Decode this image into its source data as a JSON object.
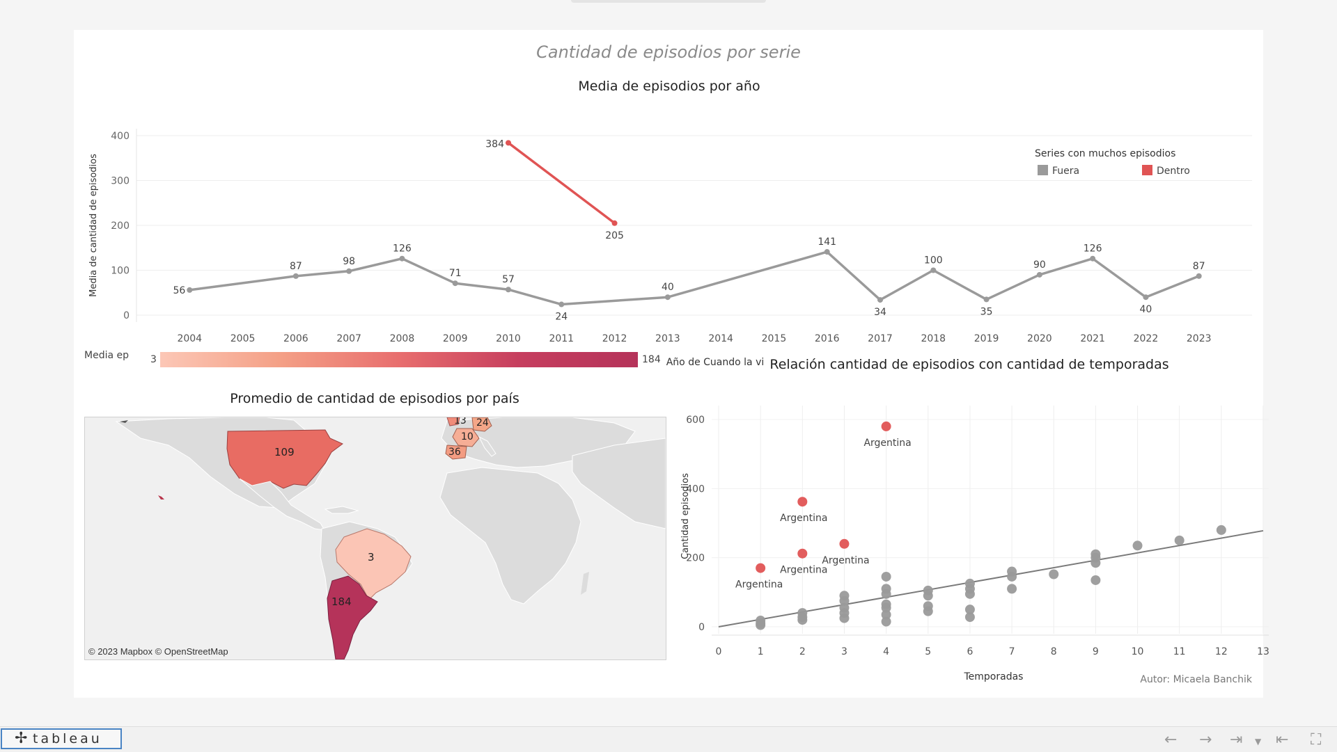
{
  "dashboard": {
    "title": "Cantidad de episodios por serie",
    "author": "Autor: Micaela Banchik"
  },
  "line_chart": {
    "title": "Media de episodios por año",
    "legend_title": "Series con muchos episodios",
    "legend_fuera": "Fuera",
    "legend_dentro": "Dentro"
  },
  "map_chart": {
    "title": "Promedio de cantidad de episodios por país",
    "scale_label": "Media ep",
    "scale_min": "3",
    "scale_max": "184",
    "credit": "© 2023 Mapbox  © OpenStreetMap",
    "labels": {
      "usa": "109",
      "brazil": "3",
      "argentina": "184",
      "uk": "13",
      "germany": "24",
      "france": "10",
      "spain": "36"
    }
  },
  "scatter_chart": {
    "title": "Relación cantidad de episodios con cantidad de temporadas"
  },
  "colors": {
    "gray": "#9a9a9a",
    "red": "#e05454",
    "trend": "#7a7a7a"
  },
  "chart_data": [
    {
      "type": "line",
      "title": "Media de episodios por año",
      "xlabel": "Año de Cuando la vi",
      "ylabel": "Media de cantidad de episodios",
      "x_ticks": [
        "2004",
        "2005",
        "2006",
        "2007",
        "2008",
        "2009",
        "2010",
        "2011",
        "2012",
        "2013",
        "2014",
        "2015",
        "2016",
        "2017",
        "2018",
        "2019",
        "2020",
        "2021",
        "2022",
        "2023"
      ],
      "ylim": [
        0,
        400
      ],
      "y_ticks": [
        "0",
        "100",
        "200",
        "300",
        "400"
      ],
      "legend": "top-right",
      "series": [
        {
          "name": "Fuera",
          "color": "#9a9a9a",
          "x": [
            2004,
            2006,
            2007,
            2008,
            2009,
            2010,
            2011,
            2013,
            2016,
            2017,
            2018,
            2019,
            2020,
            2021,
            2022,
            2023
          ],
          "values": [
            56,
            87,
            98,
            126,
            71,
            57,
            24,
            40,
            141,
            34,
            100,
            35,
            90,
            126,
            40,
            87
          ],
          "labels": [
            "56",
            "87",
            "98",
            "126",
            "71",
            "57",
            "24",
            "40",
            "141",
            "34",
            "100",
            "35",
            "90",
            "126",
            "40",
            "87"
          ]
        },
        {
          "name": "Dentro",
          "color": "#e05454",
          "x": [
            2010,
            2012
          ],
          "values": [
            384,
            205
          ],
          "labels": [
            "384",
            "205"
          ]
        }
      ]
    },
    {
      "type": "scatter",
      "title": "Relación cantidad de episodios con cantidad de temporadas",
      "xlabel": "Temporadas",
      "ylabel": "Cantidad episodios",
      "xlim": [
        0,
        13
      ],
      "ylim": [
        0,
        600
      ],
      "x_ticks": [
        "0",
        "1",
        "2",
        "3",
        "4",
        "5",
        "6",
        "7",
        "8",
        "9",
        "10",
        "11",
        "12",
        "13"
      ],
      "y_ticks": [
        "0",
        "200",
        "400",
        "600"
      ],
      "series": [
        {
          "name": "Fuera",
          "color": "#9a9a9a",
          "points": [
            [
              1,
              5
            ],
            [
              1,
              10
            ],
            [
              1,
              18
            ],
            [
              2,
              20
            ],
            [
              2,
              28
            ],
            [
              2,
              40
            ],
            [
              3,
              25
            ],
            [
              3,
              40
            ],
            [
              3,
              55
            ],
            [
              3,
              75
            ],
            [
              3,
              90
            ],
            [
              4,
              15
            ],
            [
              4,
              35
            ],
            [
              4,
              55
            ],
            [
              4,
              65
            ],
            [
              4,
              95
            ],
            [
              4,
              110
            ],
            [
              4,
              145
            ],
            [
              5,
              45
            ],
            [
              5,
              60
            ],
            [
              5,
              90
            ],
            [
              5,
              105
            ],
            [
              6,
              28
            ],
            [
              6,
              50
            ],
            [
              6,
              95
            ],
            [
              6,
              110
            ],
            [
              6,
              125
            ],
            [
              7,
              110
            ],
            [
              7,
              145
            ],
            [
              7,
              160
            ],
            [
              8,
              152
            ],
            [
              9,
              135
            ],
            [
              9,
              185
            ],
            [
              9,
              200
            ],
            [
              9,
              210
            ],
            [
              10,
              235
            ],
            [
              11,
              250
            ],
            [
              12,
              280
            ]
          ]
        },
        {
          "name": "Dentro",
          "color": "#e05454",
          "points": [
            [
              1,
              170,
              "Argentina"
            ],
            [
              2,
              212,
              "Argentina"
            ],
            [
              2,
              362,
              "Argentina"
            ],
            [
              3,
              240,
              "Argentina"
            ],
            [
              4,
              580,
              "Argentina"
            ]
          ]
        }
      ],
      "trend": [
        [
          0,
          0
        ],
        [
          13,
          278
        ]
      ]
    }
  ]
}
